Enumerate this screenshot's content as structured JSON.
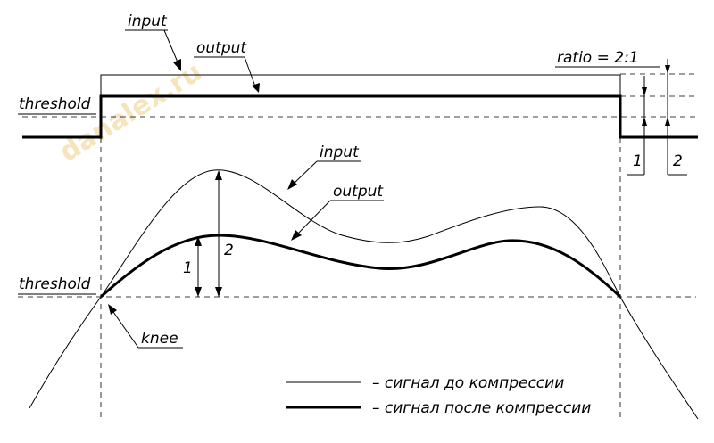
{
  "watermark": "danalex.ru",
  "labels": {
    "input_top": "input",
    "output_top": "output",
    "threshold_top": "threshold",
    "ratio": "ratio = 2:1",
    "num_1_top": "1",
    "num_2_top": "2",
    "input_curve": "input",
    "output_curve": "output",
    "threshold_curve": "threshold",
    "knee": "knee",
    "num_1_curve": "1",
    "num_2_curve": "2"
  },
  "legend": [
    {
      "style": "thin",
      "text": "– сигнал до компрессии"
    },
    {
      "style": "thick",
      "text": "– сигнал после компрессии"
    }
  ]
}
